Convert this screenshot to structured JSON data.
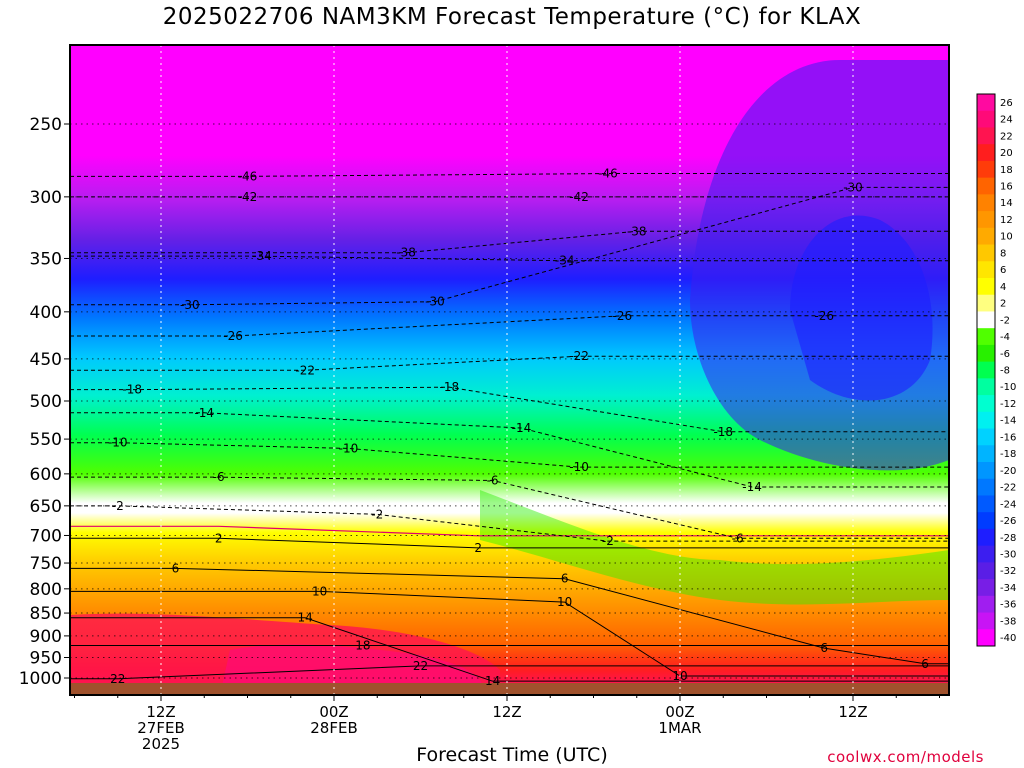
{
  "title": "2025022706 NAM3KM Forecast Temperature (°C) for KLAX",
  "xlabel": "Forecast Time (UTC)",
  "credit": "coolwx.com/models",
  "chart_data": {
    "type": "heatmap",
    "title": "2025022706 NAM3KM Forecast Temperature (°C) for KLAX",
    "xlabel": "Forecast Time (UTC)",
    "ylabel": "",
    "y_levels": [
      250,
      300,
      350,
      400,
      450,
      500,
      550,
      600,
      650,
      700,
      750,
      800,
      850,
      900,
      950,
      1000
    ],
    "y_log_scale": true,
    "x_ticks": [
      {
        "hour": 6,
        "label": [
          "12Z",
          "27FEB",
          "2025"
        ]
      },
      {
        "hour": 18,
        "label": [
          "00Z",
          "28FEB"
        ]
      },
      {
        "hour": 30,
        "label": [
          "12Z"
        ]
      },
      {
        "hour": 42,
        "label": [
          "00Z",
          "1MAR"
        ]
      },
      {
        "hour": 54,
        "label": [
          "12Z"
        ]
      }
    ],
    "x_range_hours": [
      0,
      60
    ],
    "colorbar_labels": [
      "26",
      "24",
      "22",
      "20",
      "18",
      "16",
      "14",
      "12",
      "10",
      "8",
      "6",
      "4",
      "2",
      "-2",
      "-4",
      "-6",
      "-8",
      "-10",
      "-12",
      "-14",
      "-16",
      "-18",
      "-20",
      "-22",
      "-24",
      "-26",
      "-28",
      "-30",
      "-32",
      "-34",
      "-36",
      "-38",
      "-40"
    ],
    "colorbar_colors": [
      "#ff0aa0",
      "#ff0a78",
      "#ff1450",
      "#ff1e1e",
      "#ff3c0a",
      "#ff6400",
      "#ff8200",
      "#ff9600",
      "#ffaa00",
      "#ffc800",
      "#ffe600",
      "#ffff00",
      "#ffff80",
      "#ffffff",
      "#50ff00",
      "#28f000",
      "#00ff50",
      "#00ffa0",
      "#00ffd0",
      "#00f0f0",
      "#00d2ff",
      "#00b4ff",
      "#0096ff",
      "#0078ff",
      "#005aff",
      "#003cff",
      "#1e1eff",
      "#3c1ef0",
      "#5a1ee6",
      "#781ee6",
      "#a01ef0",
      "#c814f5",
      "#ff00ff"
    ],
    "contour_labels": [
      {
        "value": -46,
        "hour": 12,
        "pres": 285
      },
      {
        "value": -46,
        "hour": 37,
        "pres": 283
      },
      {
        "value": -42,
        "hour": 12,
        "pres": 300
      },
      {
        "value": -42,
        "hour": 35,
        "pres": 300
      },
      {
        "value": -38,
        "hour": 23,
        "pres": 345
      },
      {
        "value": -38,
        "hour": 39,
        "pres": 327
      },
      {
        "value": -34,
        "hour": 13,
        "pres": 348
      },
      {
        "value": -34,
        "hour": 34,
        "pres": 352
      },
      {
        "value": -30,
        "hour": 8,
        "pres": 393
      },
      {
        "value": -30,
        "hour": 25,
        "pres": 390
      },
      {
        "value": -30,
        "hour": 54,
        "pres": 293
      },
      {
        "value": -26,
        "hour": 11,
        "pres": 425
      },
      {
        "value": -26,
        "hour": 38,
        "pres": 404
      },
      {
        "value": -26,
        "hour": 52,
        "pres": 404
      },
      {
        "value": -22,
        "hour": 16,
        "pres": 463
      },
      {
        "value": -22,
        "hour": 35,
        "pres": 447
      },
      {
        "value": -18,
        "hour": 4,
        "pres": 486
      },
      {
        "value": -18,
        "hour": 26,
        "pres": 483
      },
      {
        "value": -18,
        "hour": 45,
        "pres": 540
      },
      {
        "value": -14,
        "hour": 9,
        "pres": 515
      },
      {
        "value": -14,
        "hour": 31,
        "pres": 535
      },
      {
        "value": -14,
        "hour": 47,
        "pres": 620
      },
      {
        "value": -10,
        "hour": 3,
        "pres": 555
      },
      {
        "value": -10,
        "hour": 19,
        "pres": 563
      },
      {
        "value": -10,
        "hour": 35,
        "pres": 590
      },
      {
        "value": -6,
        "hour": 10,
        "pres": 605
      },
      {
        "value": -6,
        "hour": 29,
        "pres": 610
      },
      {
        "value": -6,
        "hour": 46,
        "pres": 705
      },
      {
        "value": -2,
        "hour": 3,
        "pres": 650
      },
      {
        "value": -2,
        "hour": 21,
        "pres": 664
      },
      {
        "value": -2,
        "hour": 37,
        "pres": 710
      },
      {
        "value": 2,
        "hour": 10,
        "pres": 705
      },
      {
        "value": 2,
        "hour": 28,
        "pres": 722
      },
      {
        "value": 6,
        "hour": 7,
        "pres": 760
      },
      {
        "value": 6,
        "hour": 34,
        "pres": 780
      },
      {
        "value": 6,
        "hour": 52,
        "pres": 928
      },
      {
        "value": 6,
        "hour": 59,
        "pres": 965
      },
      {
        "value": 10,
        "hour": 17,
        "pres": 805
      },
      {
        "value": 10,
        "hour": 34,
        "pres": 827
      },
      {
        "value": 10,
        "hour": 42,
        "pres": 995
      },
      {
        "value": 14,
        "hour": 16,
        "pres": 860
      },
      {
        "value": 14,
        "hour": 29,
        "pres": 1008
      },
      {
        "value": 18,
        "hour": 20,
        "pres": 922
      },
      {
        "value": 22,
        "hour": 3,
        "pres": 1002
      },
      {
        "value": 22,
        "hour": 24,
        "pres": 970
      }
    ]
  }
}
